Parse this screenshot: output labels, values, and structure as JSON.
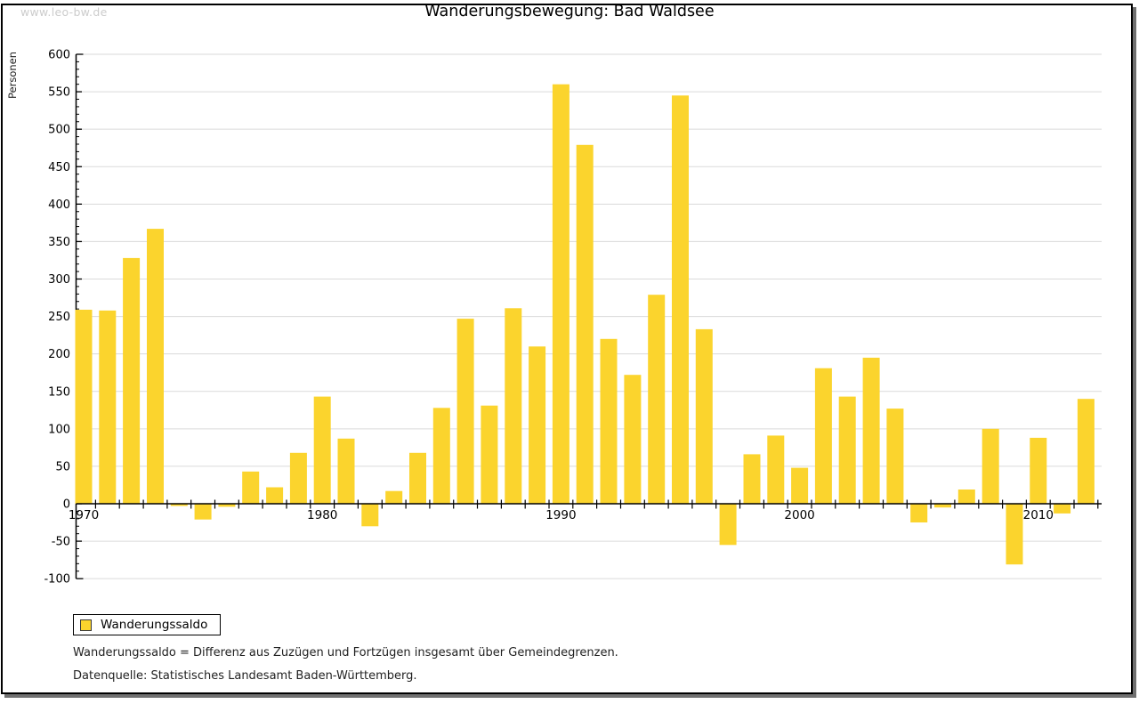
{
  "watermark": "www.leo-bw.de",
  "title": "Wanderungsbewegung: Bad Waldsee",
  "legend": {
    "label": "Wanderungssaldo"
  },
  "footnotes": [
    "Wanderungssaldo = Differenz aus Zuzügen und Fortzügen insgesamt über Gemeindegrenzen.",
    "Datenquelle: Statistisches Landesamt Baden-Württemberg."
  ],
  "chart_data": {
    "type": "bar",
    "title": "Wanderungsbewegung: Bad Waldsee",
    "ylabel": "Personen",
    "xlabel": "",
    "series_name": "Wanderungssaldo",
    "ylim": [
      -100,
      600
    ],
    "ytick_step": 50,
    "y_minor_tick_step": 10,
    "grid": true,
    "legend_position": "bottom-left",
    "bar_color": "#FBD42D",
    "grid_color": "#DADADA",
    "axis_color": "#000000",
    "x": [
      1970,
      1971,
      1972,
      1973,
      1974,
      1975,
      1976,
      1977,
      1978,
      1979,
      1980,
      1981,
      1982,
      1983,
      1984,
      1985,
      1986,
      1987,
      1988,
      1989,
      1990,
      1991,
      1992,
      1993,
      1994,
      1995,
      1996,
      1997,
      1998,
      1999,
      2000,
      2001,
      2002,
      2003,
      2004,
      2005,
      2006,
      2007,
      2008,
      2009,
      2010,
      2011,
      2012
    ],
    "values": [
      259,
      258,
      328,
      367,
      -3,
      -21,
      -4,
      43,
      22,
      68,
      143,
      87,
      -30,
      17,
      68,
      128,
      247,
      131,
      261,
      210,
      560,
      479,
      220,
      172,
      279,
      545,
      233,
      -55,
      66,
      91,
      48,
      181,
      143,
      195,
      127,
      -25,
      -5,
      19,
      100,
      -81,
      88,
      -13,
      140
    ],
    "xticks_labeled": [
      1970,
      1980,
      1990,
      2000,
      2010
    ]
  }
}
